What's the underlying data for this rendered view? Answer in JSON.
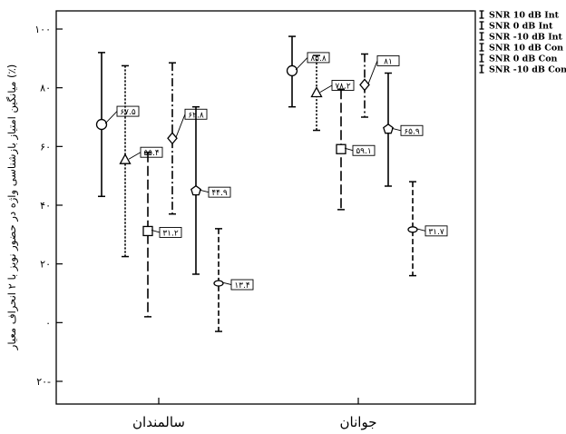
{
  "chart_data": {
    "type": "errorbar",
    "ylabel": "میانگین امتیاز بازشناسی واژه در حضور نویز با ۲ انحراف معیار (٪)",
    "ylim": [
      -30,
      100
    ],
    "yticks": [
      {
        "value": 100,
        "label": "۱۰۰"
      },
      {
        "value": 80,
        "label": "۸۰"
      },
      {
        "value": 60,
        "label": "۶۰"
      },
      {
        "value": 40,
        "label": "۴۰"
      },
      {
        "value": 20,
        "label": "۲۰"
      },
      {
        "value": 0,
        "label": "۰"
      },
      {
        "value": -20,
        "label": "۲۰-"
      }
    ],
    "categories": [
      "سالمندان",
      "جوانان"
    ],
    "grid": false,
    "legend_position": "top-right",
    "series": [
      {
        "name": "SNR 10 dB  Int",
        "marker": "circle",
        "dash": "solid",
        "points": [
          {
            "mean": 67.5,
            "low": 43,
            "high": 92,
            "label": "۶۷.۵"
          },
          {
            "mean": 85.8,
            "low": 73.5,
            "high": 97.5,
            "label": "۸۵.۸"
          }
        ]
      },
      {
        "name": "SNR 0 dB Int",
        "marker": "triangle",
        "dash": "dotted",
        "points": [
          {
            "mean": 55.4,
            "low": 22.5,
            "high": 87.5,
            "label": "۵۵.۴"
          },
          {
            "mean": 78.2,
            "low": 65.5,
            "high": 91,
            "label": "۷۸.۲"
          }
        ]
      },
      {
        "name": "SNR -10 dB Int",
        "marker": "square",
        "dash": "long-dash",
        "points": [
          {
            "mean": 31.2,
            "low": 2,
            "high": 58,
            "label": "۳۱.۲"
          },
          {
            "mean": 59.1,
            "low": 38.5,
            "high": 79.5,
            "label": "۵۹.۱"
          }
        ]
      },
      {
        "name": "SNR 10 dB  Con",
        "marker": "diamond",
        "dash": "dash-dot",
        "points": [
          {
            "mean": 62.8,
            "low": 37,
            "high": 88.5,
            "label": "۶۲.۸"
          },
          {
            "mean": 81,
            "low": 70,
            "high": 91.5,
            "label": "۸۱"
          }
        ]
      },
      {
        "name": "SNR 0 dB Con",
        "marker": "pentagon",
        "dash": "solid",
        "points": [
          {
            "mean": 44.9,
            "low": 16.5,
            "high": 73.5,
            "label": "۴۴.۹"
          },
          {
            "mean": 65.9,
            "low": 46.5,
            "high": 85,
            "label": "۶۵.۹"
          }
        ]
      },
      {
        "name": "SNR -10 dB Con",
        "marker": "ellipse",
        "dash": "dashed",
        "points": [
          {
            "mean": 13.4,
            "low": -3,
            "high": 32,
            "label": "۱۳.۴"
          },
          {
            "mean": 31.7,
            "low": 16,
            "high": 48,
            "label": "۳۱.۷"
          }
        ]
      }
    ]
  }
}
